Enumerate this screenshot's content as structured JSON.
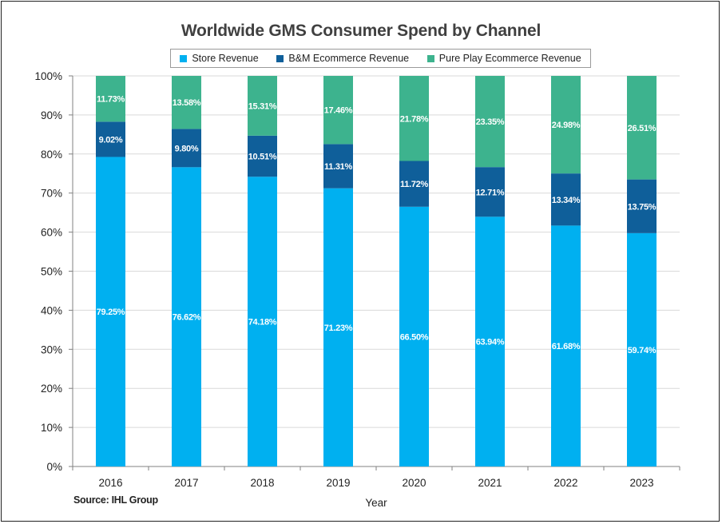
{
  "chart_data": {
    "type": "bar",
    "stacked": true,
    "title": "Worldwide GMS Consumer Spend by Channel",
    "xlabel": "Year",
    "ylabel": "",
    "ylim": [
      0,
      100
    ],
    "yticks": [
      "0%",
      "10%",
      "20%",
      "30%",
      "40%",
      "50%",
      "60%",
      "70%",
      "80%",
      "90%",
      "100%"
    ],
    "grid": true,
    "legend_placement": "top",
    "categories": [
      "2016",
      "2017",
      "2018",
      "2019",
      "2020",
      "2021",
      "2022",
      "2023"
    ],
    "series": [
      {
        "name": "Store Revenue",
        "color": "#00b0f0",
        "values": [
          79.25,
          76.62,
          74.18,
          71.23,
          66.5,
          63.94,
          61.68,
          59.74
        ],
        "labels": [
          "79.25%",
          "76.62%",
          "74.18%",
          "71.23%",
          "66.50%",
          "63.94%",
          "61.68%",
          "59.74%"
        ]
      },
      {
        "name": "B&M Ecommerce Revenue",
        "color": "#0f5f9a",
        "values": [
          9.02,
          9.8,
          10.51,
          11.31,
          11.72,
          12.71,
          13.34,
          13.75
        ],
        "labels": [
          "9.02%",
          "9.80%",
          "10.51%",
          "11.31%",
          "11.72%",
          "12.71%",
          "13.34%",
          "13.75%"
        ]
      },
      {
        "name": "Pure Play Ecommerce Revenue",
        "color": "#3db38e",
        "values": [
          11.73,
          13.58,
          15.31,
          17.46,
          21.78,
          23.35,
          24.98,
          26.51
        ],
        "labels": [
          "11.73%",
          "13.58%",
          "15.31%",
          "17.46%",
          "21.78%",
          "23.35%",
          "24.98%",
          "26.51%"
        ]
      }
    ],
    "source": "Source: IHL Group"
  }
}
